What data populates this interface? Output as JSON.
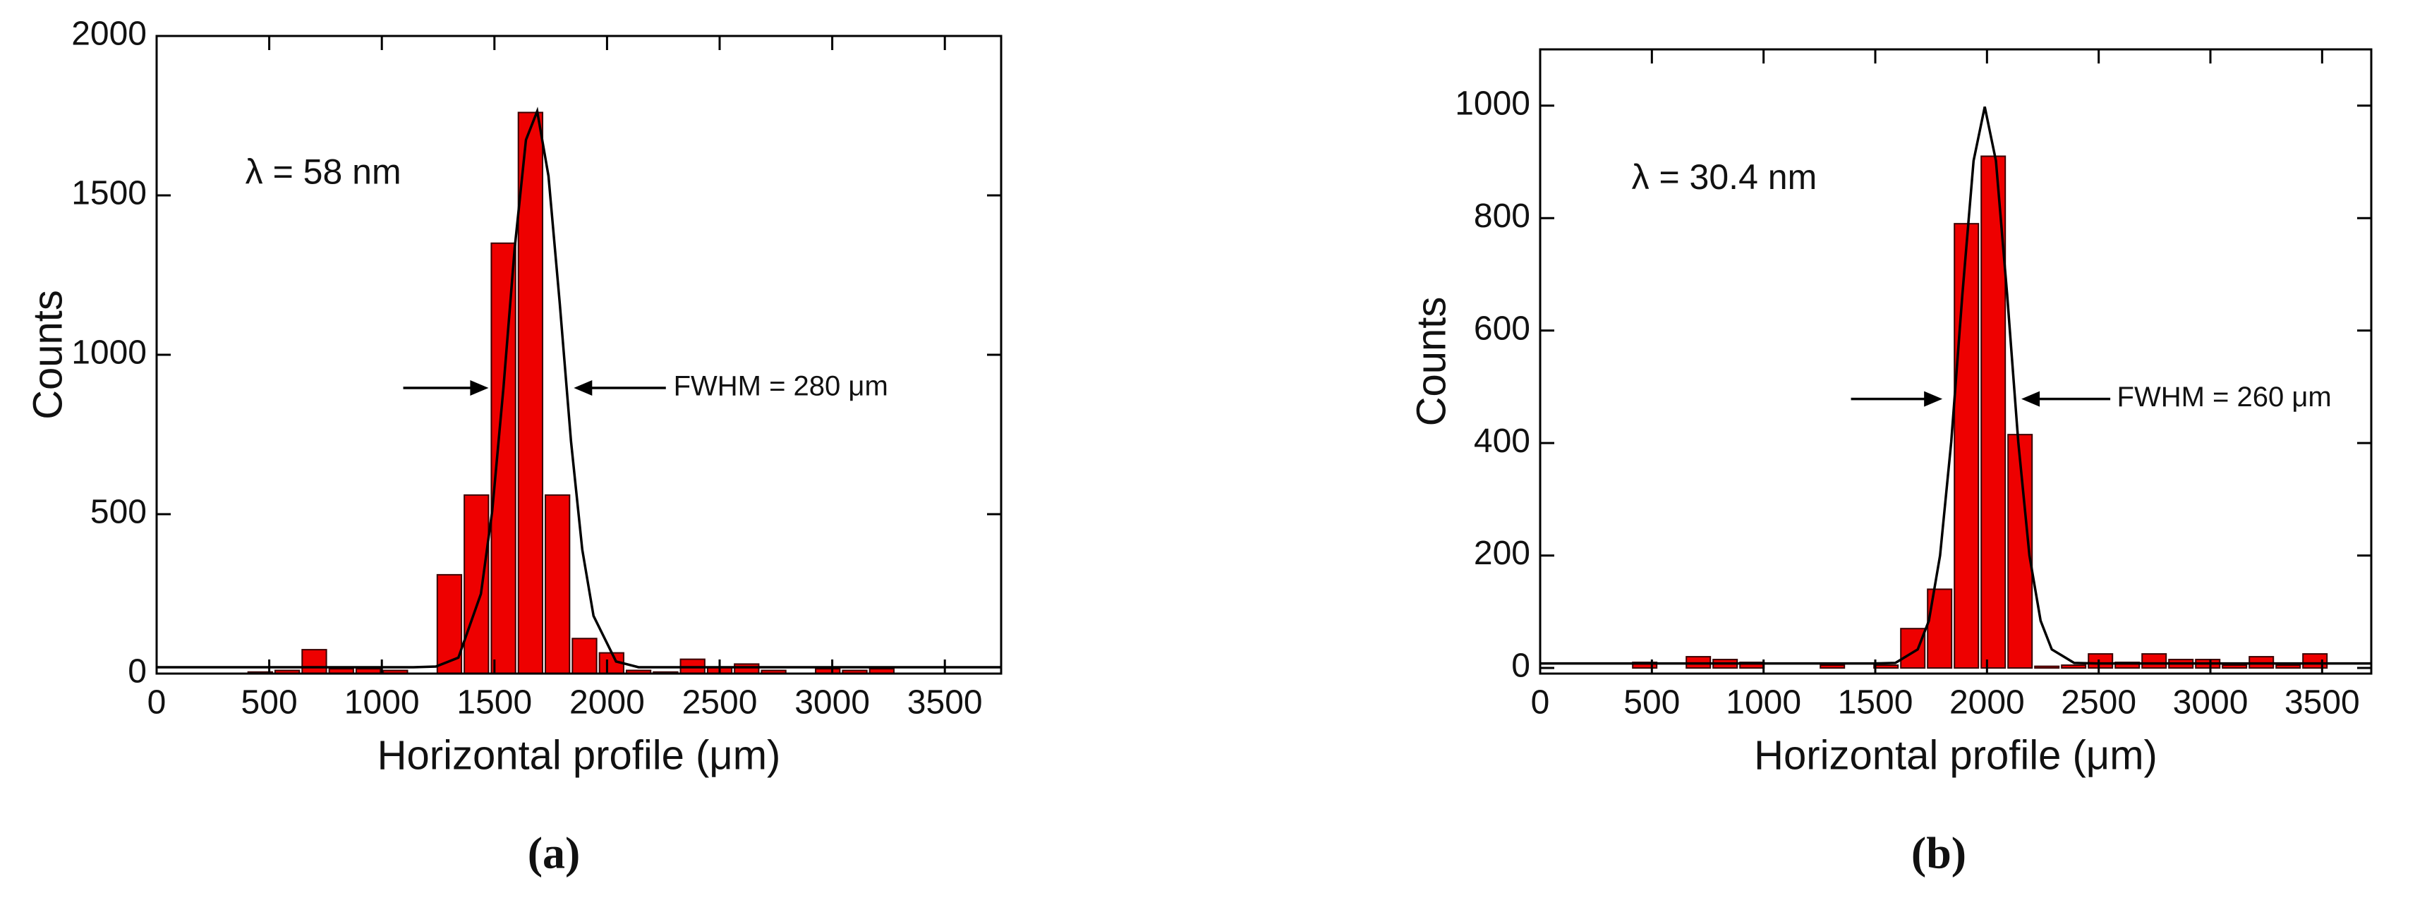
{
  "chart_data": [
    {
      "type": "histogram",
      "panel": "(a)",
      "xlabel": "Horizontal profile (μm)",
      "ylabel": "Counts",
      "annotation": "λ = 58 nm",
      "fwhm_label": "FWHM = 280 μm",
      "color": "#ee0000",
      "bins": [
        400,
        520,
        640,
        760,
        880,
        1000,
        1120,
        1240,
        1360,
        1480,
        1600,
        1720,
        1840,
        1960,
        2080,
        2200,
        2320,
        2440,
        2560,
        2680,
        2800,
        2920,
        3040,
        3160,
        3280
      ],
      "values": [
        5,
        10,
        75,
        15,
        15,
        10,
        0,
        310,
        560,
        1350,
        1760,
        560,
        110,
        65,
        10,
        5,
        45,
        20,
        30,
        10,
        0,
        15,
        10,
        15
      ],
      "fit": {
        "color": "#000000",
        "x": [
          0,
          1140,
          1240,
          1340,
          1440,
          1490,
          1540,
          1590,
          1640,
          1690,
          1740,
          1790,
          1840,
          1890,
          1940,
          2040,
          2140,
          3750
        ],
        "values": [
          20,
          20,
          22,
          50,
          250,
          509,
          896,
          1335,
          1674,
          1764,
          1561,
          1162,
          729,
          389,
          181,
          38,
          20,
          20
        ]
      },
      "xlim": [
        0,
        3750
      ],
      "ylim": [
        0,
        2000
      ],
      "xticks": [
        0,
        500,
        1000,
        1500,
        2000,
        2500,
        3000,
        3500
      ],
      "yticks": [
        0,
        500,
        1000,
        1500,
        2000
      ]
    },
    {
      "type": "histogram",
      "panel": "(b)",
      "xlabel": "Horizontal profile (μm)",
      "ylabel": "Counts",
      "annotation": "λ = 30.4 nm",
      "fwhm_label": "FWHM = 260 μm",
      "color": "#ee0000",
      "bins": [
        408,
        528,
        648,
        768,
        888,
        1008,
        1128,
        1248,
        1368,
        1488,
        1608,
        1728,
        1848,
        1968,
        2088,
        2208,
        2328,
        2448,
        2568,
        2688,
        2808,
        2928,
        3048,
        3168,
        3288,
        3408,
        3528
      ],
      "values": [
        10,
        0,
        20,
        15,
        10,
        0,
        0,
        5,
        0,
        5,
        70,
        140,
        790,
        910,
        415,
        3,
        5,
        25,
        10,
        25,
        15,
        15,
        5,
        20,
        5,
        25
      ],
      "fit": {
        "color": "#000000",
        "x": [
          0,
          1490,
          1590,
          1690,
          1740,
          1790,
          1840,
          1890,
          1940,
          1990,
          2040,
          2090,
          2140,
          2190,
          2240,
          2290,
          2390,
          2490,
          3720
        ],
        "values": [
          8,
          8,
          9,
          33,
          84,
          200,
          402,
          665,
          902,
          998,
          902,
          665,
          402,
          200,
          84,
          33,
          9,
          8,
          8
        ]
      },
      "xlim": [
        0,
        3720
      ],
      "ylim": [
        -10,
        1100
      ],
      "xticks": [
        0,
        500,
        1000,
        1500,
        2000,
        2500,
        3000,
        3500
      ],
      "yticks": [
        0,
        200,
        400,
        600,
        800,
        1000
      ]
    }
  ]
}
